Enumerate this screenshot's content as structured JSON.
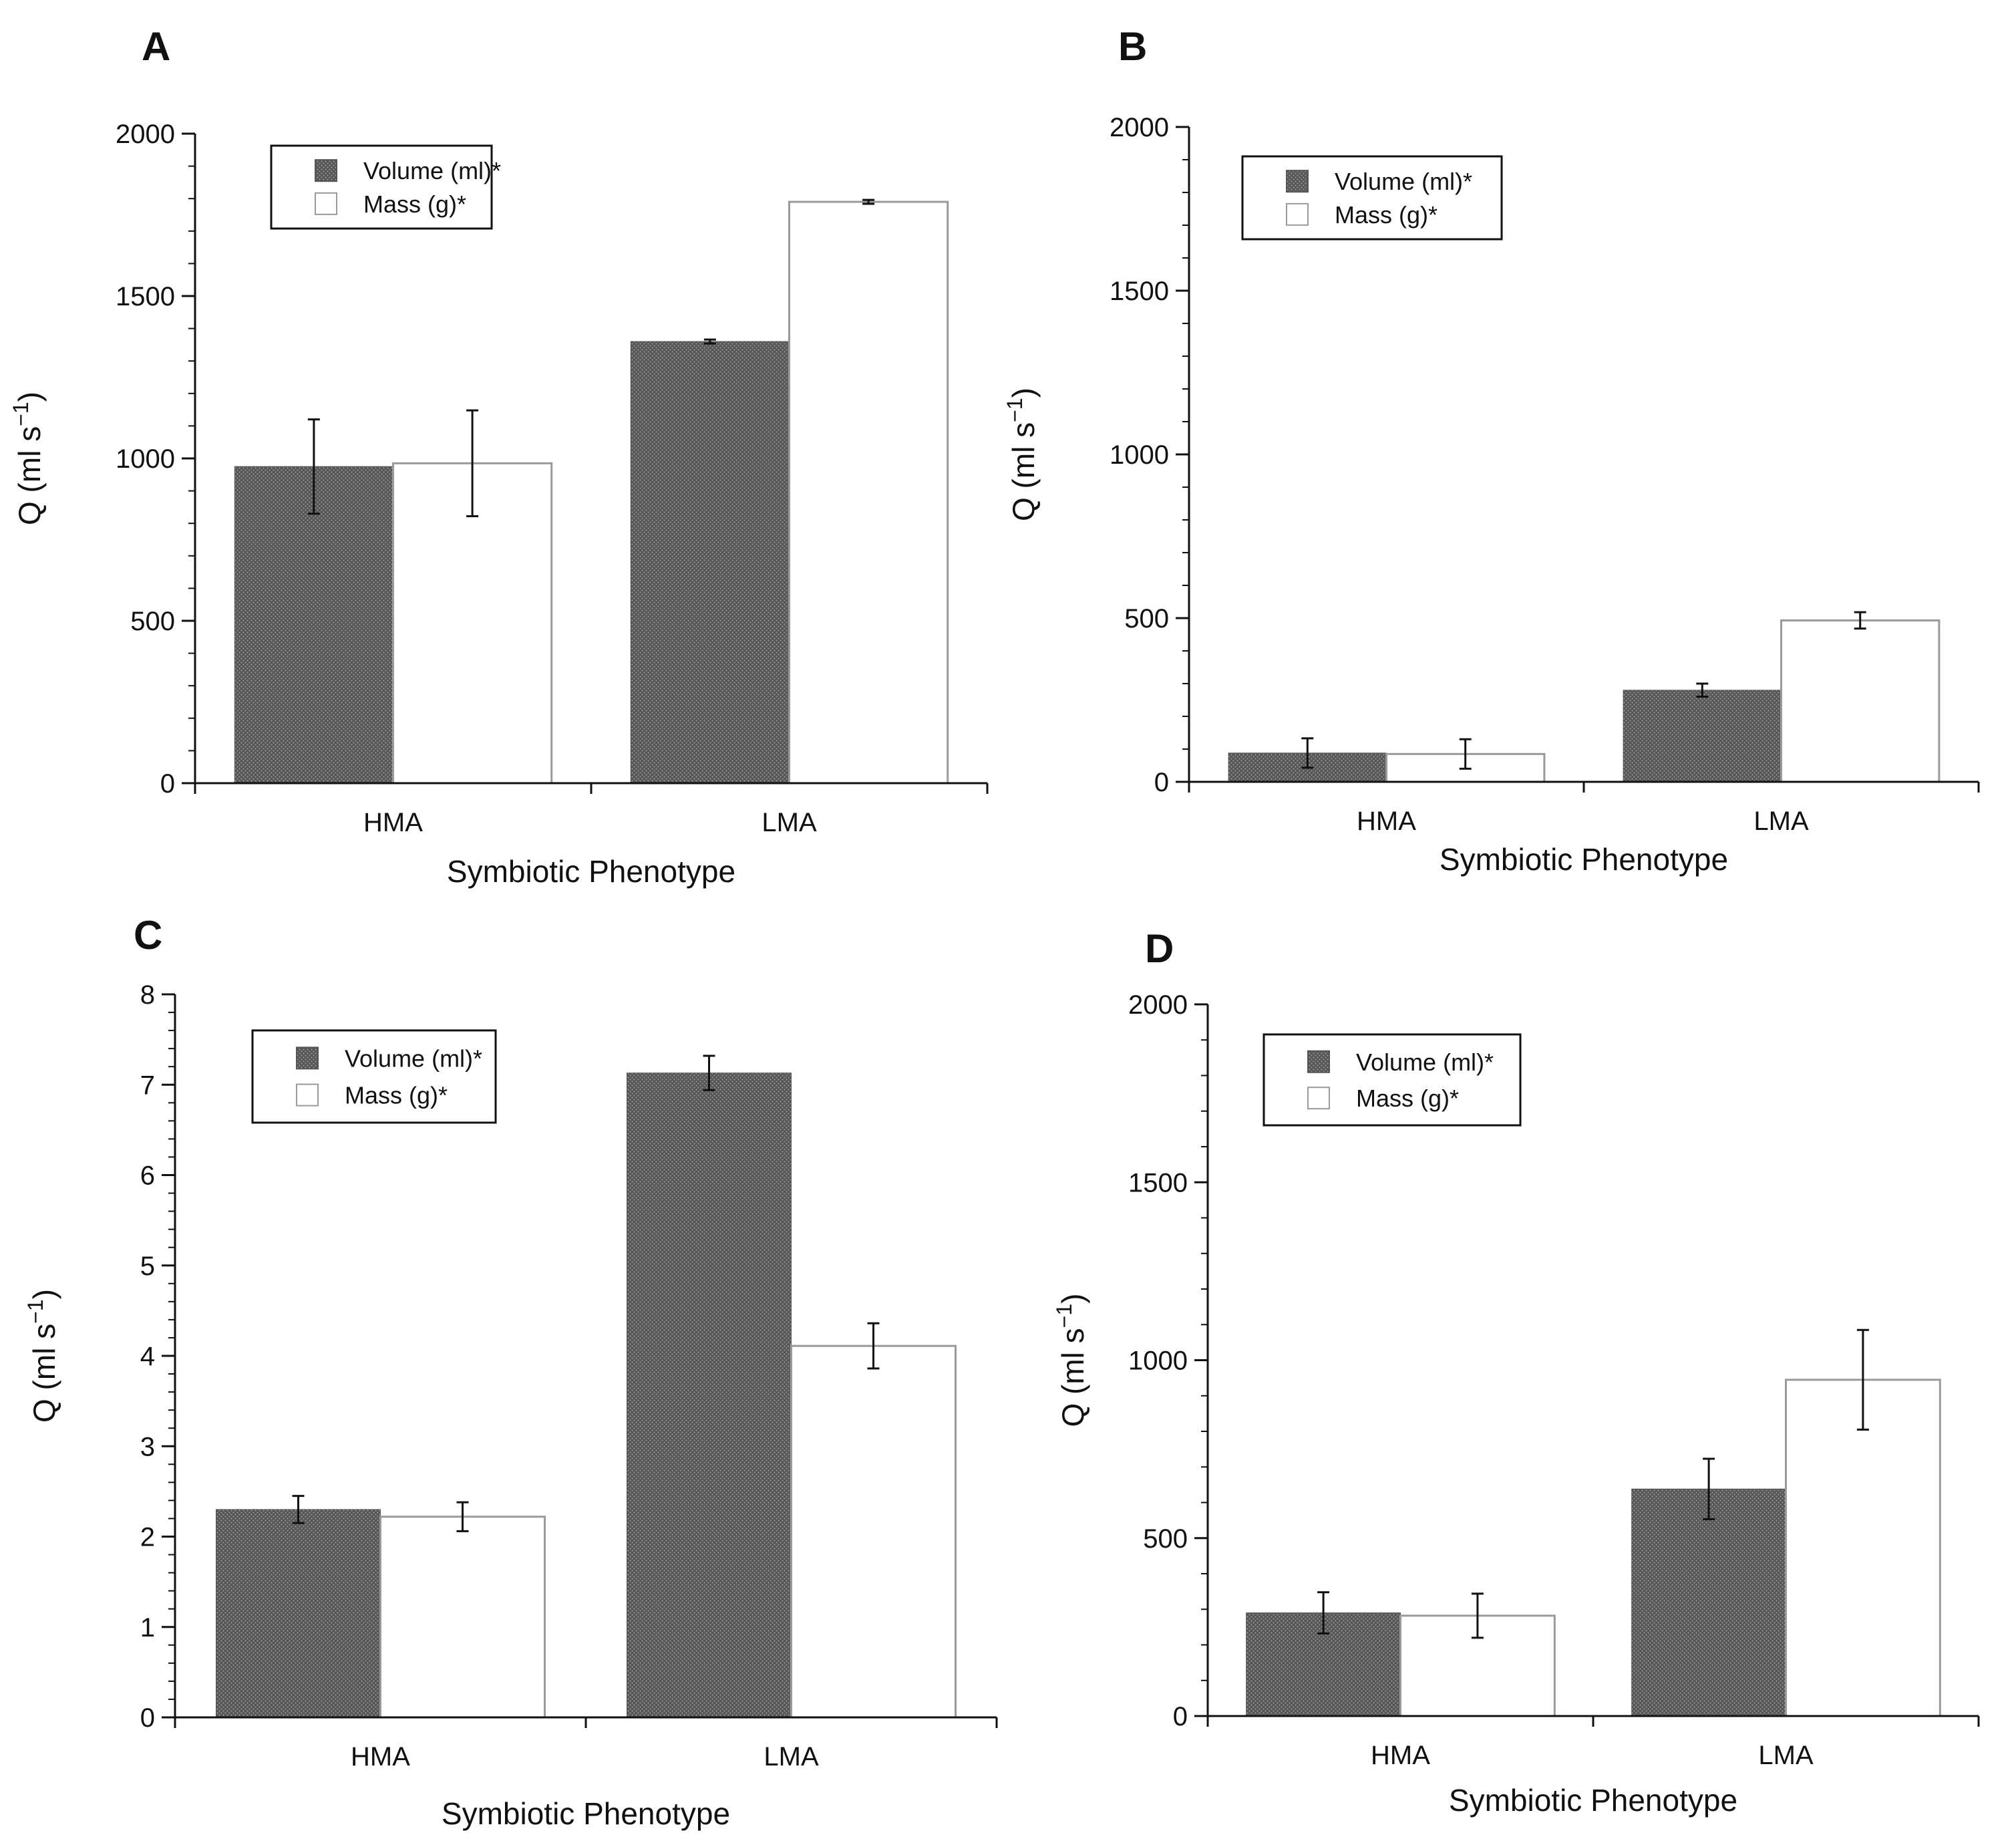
{
  "figure": {
    "x_axis_title": "Symbiotic Phenotype",
    "y_axis_title_base": "Q (ml s",
    "y_axis_title_exp": "−1",
    "y_axis_title_close": ")",
    "legend": [
      "Volume (ml)*",
      "Mass (g)*"
    ],
    "colors": {
      "volume_fill": "#555555",
      "volume_dot": "#9a9a9a",
      "mass_fill": "#ffffff",
      "mass_stroke": "#9a9a9a",
      "axis": "#111111"
    }
  },
  "chart_data": [
    {
      "type": "bar",
      "panel": "A",
      "title": "",
      "xlabel": "Symbiotic Phenotype",
      "ylabel": "Q (ml s⁻¹)",
      "categories": [
        "HMA",
        "LMA"
      ],
      "ylim": [
        0,
        2000
      ],
      "yticks": [
        0,
        500,
        1000,
        1500,
        2000
      ],
      "grid": false,
      "legend_position": "top-left",
      "series": [
        {
          "name": "Volume (ml)*",
          "values": [
            975,
            1360
          ],
          "errors": [
            145,
            6
          ]
        },
        {
          "name": "Mass (g)*",
          "values": [
            985,
            1790
          ],
          "errors": [
            163,
            6
          ]
        }
      ]
    },
    {
      "type": "bar",
      "panel": "B",
      "title": "",
      "xlabel": "Symbiotic Phenotype",
      "ylabel": "Q (ml s⁻¹)",
      "categories": [
        "HMA",
        "LMA"
      ],
      "ylim": [
        0,
        2000
      ],
      "yticks": [
        0,
        500,
        1000,
        1500,
        2000
      ],
      "grid": false,
      "legend_position": "top-left",
      "series": [
        {
          "name": "Volume (ml)*",
          "values": [
            88,
            280
          ],
          "errors": [
            45,
            20
          ]
        },
        {
          "name": "Mass (g)*",
          "values": [
            85,
            493
          ],
          "errors": [
            45,
            25
          ]
        }
      ]
    },
    {
      "type": "bar",
      "panel": "C",
      "title": "",
      "xlabel": "Symbiotic Phenotype",
      "ylabel": "Q (ml s⁻¹)",
      "categories": [
        "HMA",
        "LMA"
      ],
      "ylim": [
        0,
        8
      ],
      "yticks": [
        0,
        1,
        2,
        3,
        4,
        5,
        6,
        7,
        8
      ],
      "grid": false,
      "legend_position": "top-left",
      "series": [
        {
          "name": "Volume (ml)*",
          "values": [
            2.3,
            7.13
          ],
          "errors": [
            0.15,
            0.19
          ]
        },
        {
          "name": "Mass (g)*",
          "values": [
            2.22,
            4.11
          ],
          "errors": [
            0.16,
            0.25
          ]
        }
      ]
    },
    {
      "type": "bar",
      "panel": "D",
      "title": "",
      "xlabel": "Symbiotic Phenotype",
      "ylabel": "Q (ml s⁻¹)",
      "categories": [
        "HMA",
        "LMA"
      ],
      "ylim": [
        0,
        2000
      ],
      "yticks": [
        0,
        500,
        1000,
        1500,
        2000
      ],
      "grid": false,
      "legend_position": "top-left",
      "series": [
        {
          "name": "Volume (ml)*",
          "values": [
            290,
            638
          ],
          "errors": [
            58,
            85
          ]
        },
        {
          "name": "Mass (g)*",
          "values": [
            282,
            945
          ],
          "errors": [
            62,
            140
          ]
        }
      ]
    }
  ]
}
